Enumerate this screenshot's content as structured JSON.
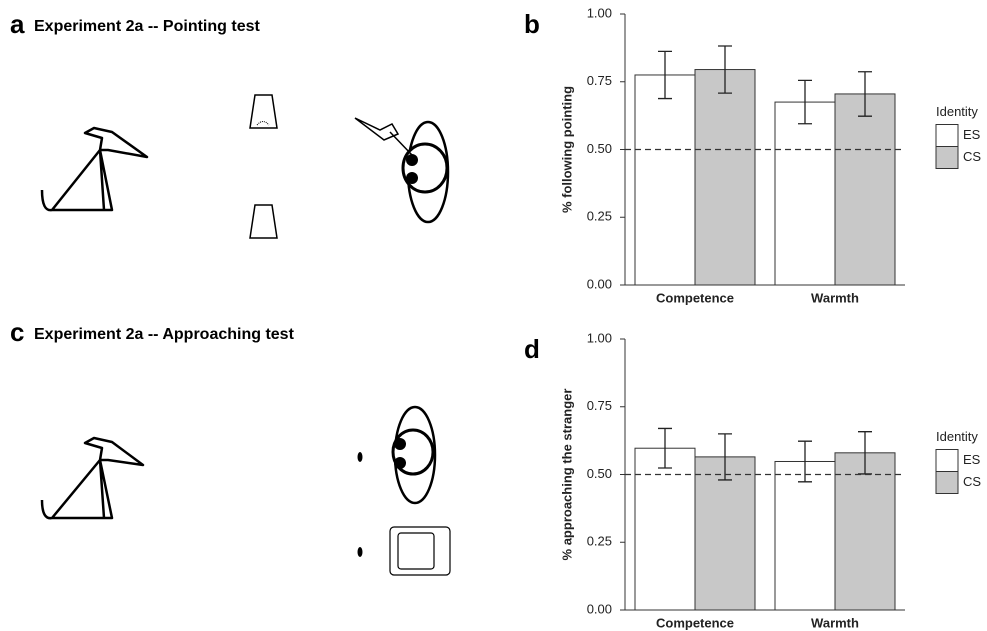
{
  "panels": [
    {
      "label": "a",
      "title": "Experiment 2a -- Pointing test"
    },
    {
      "label": "c",
      "title": "Experiment 2a -- Approaching test"
    }
  ],
  "chart_data": [
    {
      "type": "bar",
      "panel_label": "b",
      "y_label": "% following pointing",
      "categories": [
        "Competence",
        "Warmth"
      ],
      "series": [
        {
          "name": "ES",
          "color": "#ffffff",
          "values": [
            0.775,
            0.675
          ],
          "errors": [
            0.087,
            0.08
          ]
        },
        {
          "name": "CS",
          "color": "#c8c8c8",
          "values": [
            0.795,
            0.705
          ],
          "errors": [
            0.087,
            0.082
          ]
        }
      ],
      "ylim": [
        0,
        1
      ],
      "yticks": [
        {
          "value": 0,
          "label": "0.00"
        },
        {
          "value": 0.25,
          "label": "0.25"
        },
        {
          "value": 0.5,
          "label": "0.50"
        },
        {
          "value": 0.75,
          "label": "0.75"
        },
        {
          "value": 1,
          "label": "1.00"
        }
      ],
      "hline": 0.5,
      "legend_title": "Identity",
      "legend": "right"
    },
    {
      "type": "bar",
      "panel_label": "d",
      "y_label": "% approaching the stranger",
      "categories": [
        "Competence",
        "Warmth"
      ],
      "series": [
        {
          "name": "ES",
          "color": "#ffffff",
          "values": [
            0.597,
            0.548
          ],
          "errors": [
            0.073,
            0.075
          ]
        },
        {
          "name": "CS",
          "color": "#c8c8c8",
          "values": [
            0.565,
            0.58
          ],
          "errors": [
            0.085,
            0.078
          ]
        }
      ],
      "ylim": [
        0,
        1
      ],
      "yticks": [
        {
          "value": 0,
          "label": "0.00"
        },
        {
          "value": 0.25,
          "label": "0.25"
        },
        {
          "value": 0.5,
          "label": "0.50"
        },
        {
          "value": 0.75,
          "label": "0.75"
        },
        {
          "value": 1,
          "label": "1.00"
        }
      ],
      "hline": 0.5,
      "legend_title": "Identity",
      "legend": "right"
    }
  ]
}
